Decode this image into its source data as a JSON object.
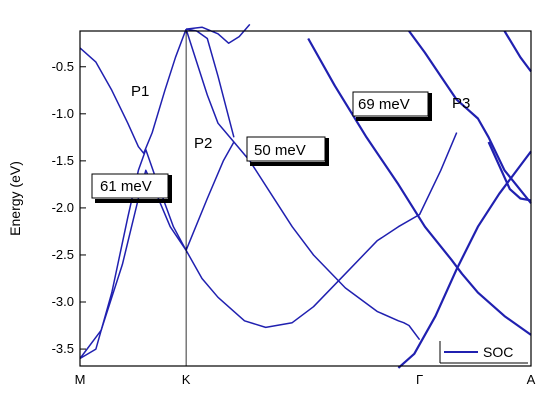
{
  "chart_data": {
    "type": "line",
    "ylabel": "Energy (eV)",
    "ylim": [
      -3.68,
      -0.12
    ],
    "y_ticks": [
      "-0.5",
      "-1.0",
      "-1.5",
      "-2.0",
      "-2.5",
      "-3.0",
      "-3.5"
    ],
    "y_tick_values": [
      -0.5,
      -1.0,
      -1.5,
      -2.0,
      -2.5,
      -3.0,
      -3.5
    ],
    "x_ticks": [
      "M",
      "K",
      "Γ",
      "A"
    ],
    "x_tick_positions": [
      0,
      1,
      3.2,
      4.25
    ],
    "xlim": [
      0,
      4.25
    ],
    "legend": {
      "label": "SOC",
      "position": "bottom-right"
    },
    "annotations": {
      "points": [
        "P1",
        "P2",
        "P3"
      ],
      "gaps": [
        "61 meV",
        "50 meV",
        "69 meV"
      ]
    },
    "line_color": "#2020b0",
    "bands": [
      {
        "x": [
          0,
          0.15,
          0.3,
          0.45,
          0.55,
          0.6,
          0.68,
          0.8,
          0.9,
          1.0
        ],
        "y": [
          -0.3,
          -0.45,
          -0.75,
          -1.1,
          -1.35,
          -1.42,
          -1.2,
          -0.75,
          -0.4,
          -0.1
        ]
      },
      {
        "x": [
          0,
          0.15,
          0.3,
          0.45,
          0.55,
          0.62,
          0.75,
          0.88,
          1.0,
          1.2,
          1.35,
          1.45
        ],
        "y": [
          -3.6,
          -3.5,
          -2.9,
          -2.1,
          -1.6,
          -1.38,
          -1.8,
          -2.2,
          -2.45,
          -1.9,
          -1.5,
          -1.3
        ]
      },
      {
        "x": [
          0,
          0.2,
          0.4,
          0.55,
          0.62,
          0.7,
          0.85,
          1.0
        ],
        "y": [
          -3.6,
          -3.3,
          -2.6,
          -1.9,
          -1.6,
          -1.8,
          -2.2,
          -2.45
        ]
      },
      {
        "x": [
          1.0,
          1.1,
          1.2,
          1.3,
          1.45,
          1.6,
          1.8,
          2.0,
          2.2,
          2.5,
          2.8,
          3.0,
          3.05,
          3.1,
          3.2
        ],
        "y": [
          -0.1,
          -0.45,
          -0.8,
          -1.1,
          -1.3,
          -1.5,
          -1.85,
          -2.2,
          -2.5,
          -2.85,
          -3.1,
          -3.2,
          -3.22,
          -3.25,
          -3.4
        ]
      },
      {
        "x": [
          1.0,
          1.15,
          1.3,
          1.45,
          1.55,
          1.75,
          2.0,
          2.2,
          2.5,
          2.8,
          3.0,
          3.2,
          3.4,
          3.55
        ],
        "y": [
          -2.45,
          -2.75,
          -2.95,
          -3.1,
          -3.2,
          -3.27,
          -3.22,
          -3.05,
          -2.7,
          -2.35,
          -2.2,
          -2.07,
          -1.6,
          -1.2
        ]
      },
      {
        "x": [
          1.0,
          1.1,
          1.2,
          1.3,
          1.45
        ],
        "y": [
          -0.1,
          -0.12,
          -0.2,
          -0.6,
          -1.25
        ]
      },
      {
        "x": [
          1.0,
          1.15,
          1.3,
          1.4,
          1.5,
          1.6
        ],
        "y": [
          -0.1,
          -0.08,
          -0.15,
          -0.25,
          -0.18,
          -0.05
        ]
      },
      {
        "x": [
          2.15,
          2.4,
          2.7,
          3.0,
          3.25,
          3.5,
          3.6,
          3.75,
          4.0,
          4.25
        ],
        "y": [
          -0.2,
          -0.7,
          -1.25,
          -1.75,
          -2.2,
          -2.55,
          -2.7,
          -2.9,
          -3.15,
          -3.35
        ]
      },
      {
        "x": [
          3.1,
          3.25,
          3.4,
          3.55,
          3.65,
          3.75,
          3.85,
          4.0,
          4.25
        ],
        "y": [
          -0.12,
          -0.35,
          -0.6,
          -0.85,
          -0.95,
          -1.05,
          -1.25,
          -1.6,
          -1.95
        ]
      },
      {
        "x": [
          3.0,
          3.15,
          3.35,
          3.55,
          3.75,
          3.95,
          4.25
        ],
        "y": [
          -3.7,
          -3.55,
          -3.15,
          -2.65,
          -2.2,
          -1.85,
          -1.4
        ]
      },
      {
        "x": [
          3.85,
          3.95,
          4.05,
          4.15,
          4.25
        ],
        "y": [
          -1.3,
          -1.55,
          -1.8,
          -1.9,
          -1.92
        ]
      },
      {
        "x": [
          4.0,
          4.15,
          4.25
        ],
        "y": [
          -0.12,
          -0.4,
          -0.55
        ]
      }
    ]
  }
}
